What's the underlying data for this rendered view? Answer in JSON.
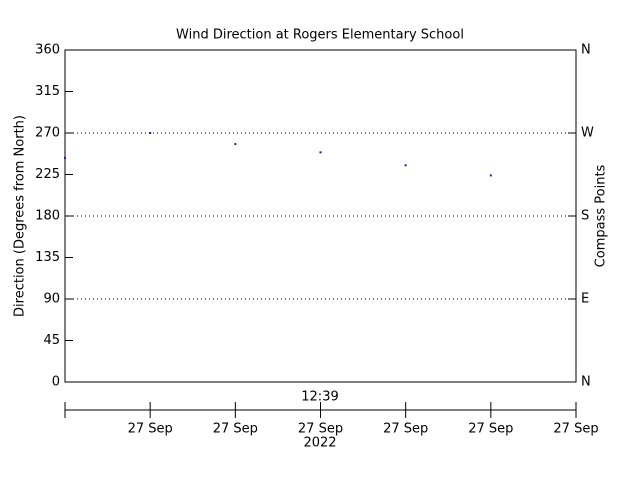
{
  "chart_data": {
    "type": "scatter",
    "title": "Wind Direction at Rogers Elementary School",
    "ylabel": "Direction (Degrees from North)",
    "y2label": "Compass Points",
    "time_label": "12:39",
    "year_label": "2022",
    "x": [
      0,
      1,
      2,
      3,
      4,
      5
    ],
    "series": [
      {
        "color": "#4b00c8",
        "values": [
          243,
          270,
          258,
          249,
          235,
          224
        ]
      }
    ],
    "xlim": [
      0,
      6
    ],
    "xticks": [
      {
        "value": 1,
        "label": "27 Sep"
      },
      {
        "value": 2,
        "label": "27 Sep"
      },
      {
        "value": 3,
        "label": "27 Sep"
      },
      {
        "value": 4,
        "label": "27 Sep"
      },
      {
        "value": 5,
        "label": "27 Sep"
      },
      {
        "value": 6,
        "label": "27 Sep"
      }
    ],
    "ylim": [
      0,
      360
    ],
    "yticks": [
      0,
      45,
      90,
      135,
      180,
      225,
      270,
      315,
      360
    ],
    "y2lim": [
      0,
      360
    ],
    "y2ticks": [
      {
        "value": 0,
        "label": "N"
      },
      {
        "value": 90,
        "label": "E"
      },
      {
        "value": 180,
        "label": "S"
      },
      {
        "value": 270,
        "label": "W"
      },
      {
        "value": 360,
        "label": "N"
      }
    ],
    "grid": true
  }
}
